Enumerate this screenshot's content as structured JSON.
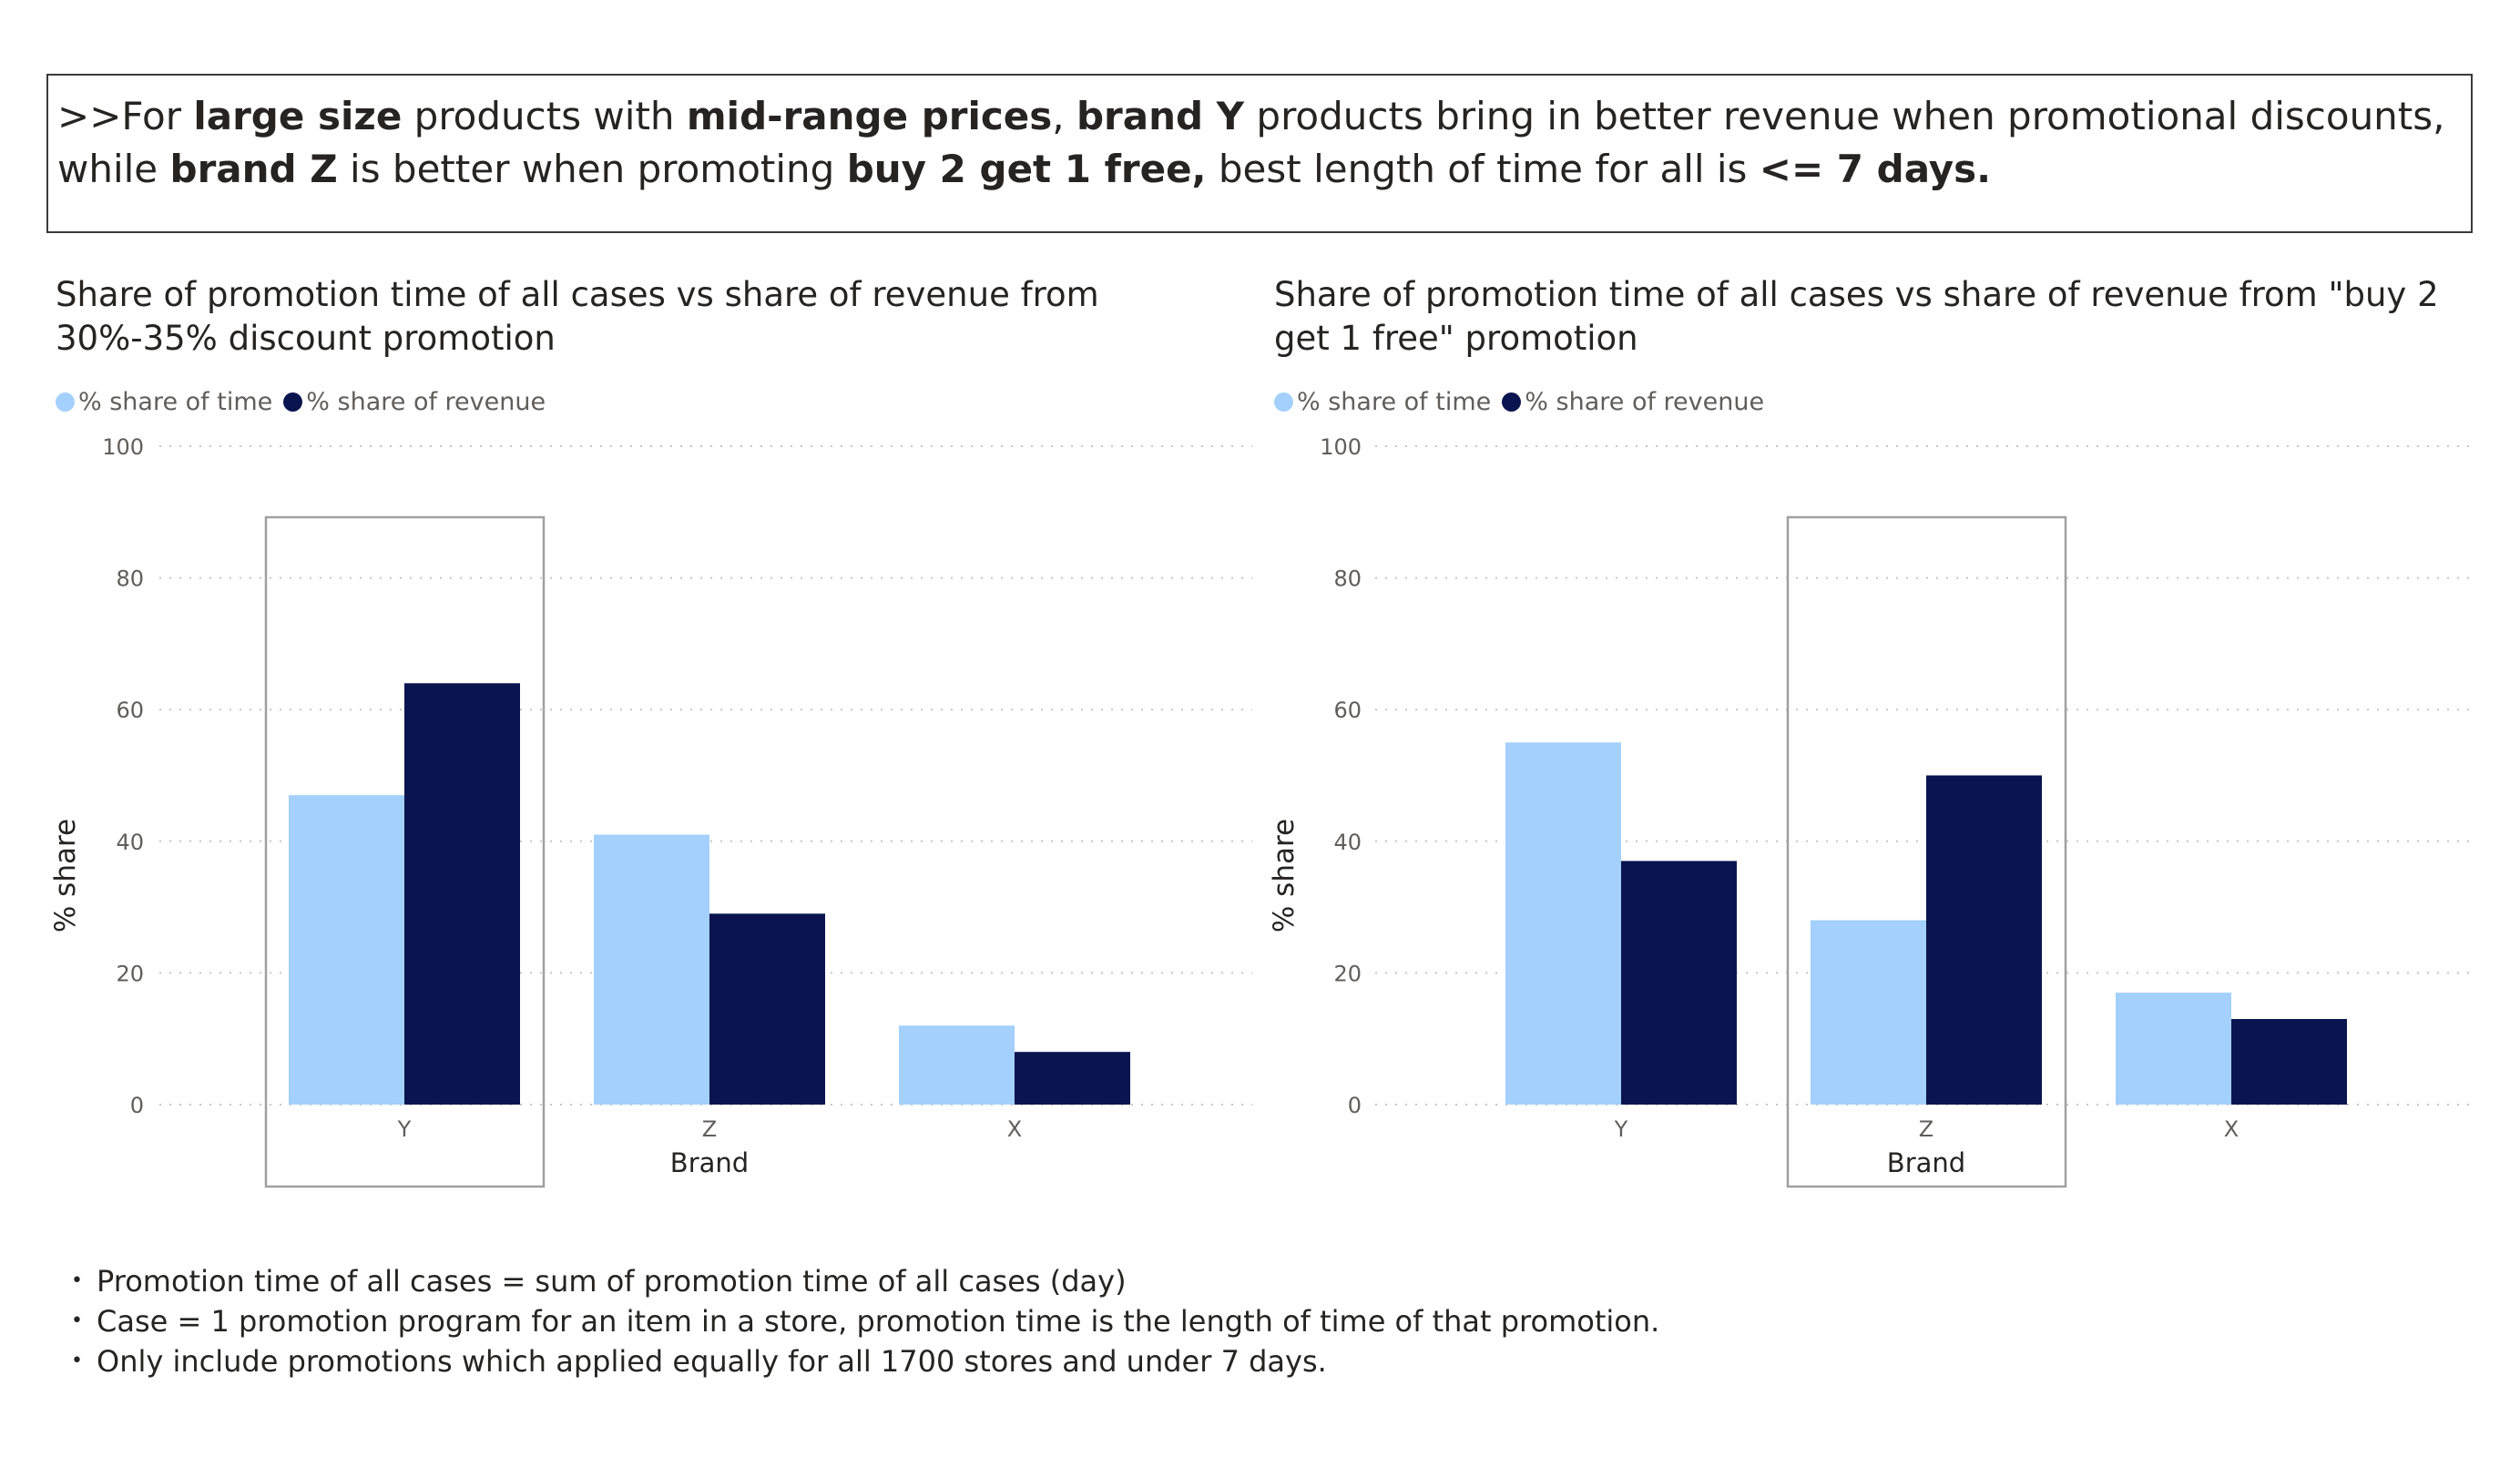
{
  "callout": {
    "parts": [
      {
        "text": ">>For ",
        "bold": false
      },
      {
        "text": "large size",
        "bold": true
      },
      {
        "text": " products with ",
        "bold": false
      },
      {
        "text": "mid-range prices",
        "bold": true
      },
      {
        "text": ", ",
        "bold": false
      },
      {
        "text": "brand Y",
        "bold": true
      },
      {
        "text": " products bring in better revenue when promotional discounts, while ",
        "bold": false
      },
      {
        "text": "brand Z",
        "bold": true
      },
      {
        "text": " is better when promoting ",
        "bold": false
      },
      {
        "text": "buy 2 get 1 free,",
        "bold": true
      },
      {
        "text": " best length of time for all is ",
        "bold": false
      },
      {
        "text": "<= 7 days.",
        "bold": true
      }
    ]
  },
  "colors": {
    "time": "#a3d0fc",
    "revenue": "#0a1550",
    "grid": "#c8c6c4",
    "highlight_box": "#a0a0a0"
  },
  "chart_data": [
    {
      "type": "bar",
      "title": "Share of promotion time of all cases vs share of revenue from 30%-35% discount promotion",
      "xlabel": "Brand",
      "ylabel": "% share",
      "ylim": [
        0,
        100
      ],
      "yticks": [
        "0",
        "20",
        "40",
        "60",
        "80",
        "100"
      ],
      "categories": [
        "Y",
        "Z",
        "X"
      ],
      "series": [
        {
          "name": "% share of time",
          "values": [
            47,
            41,
            12
          ]
        },
        {
          "name": "% share of revenue",
          "values": [
            64,
            29,
            8
          ]
        }
      ],
      "highlighted_category": "Y",
      "grid": true,
      "legend": "top-left"
    },
    {
      "type": "bar",
      "title": "Share of promotion time of all cases vs share of revenue from \"buy 2 get 1 free\" promotion",
      "xlabel": "Brand",
      "ylabel": "% share",
      "ylim": [
        0,
        100
      ],
      "yticks": [
        "0",
        "20",
        "40",
        "60",
        "80",
        "100"
      ],
      "categories": [
        "Y",
        "Z",
        "X"
      ],
      "series": [
        {
          "name": "% share of time",
          "values": [
            55,
            28,
            17
          ]
        },
        {
          "name": "% share of revenue",
          "values": [
            37,
            50,
            13
          ]
        }
      ],
      "highlighted_category": "Z",
      "grid": true,
      "legend": "top-left"
    }
  ],
  "notes": [
    "Promotion time of all cases = sum of promotion time of all cases (day)",
    "Case = 1 promotion program for an item in a store, promotion time is the length of time of that promotion.",
    "Only include promotions  which applied equally for all 1700 stores and under 7 days."
  ]
}
